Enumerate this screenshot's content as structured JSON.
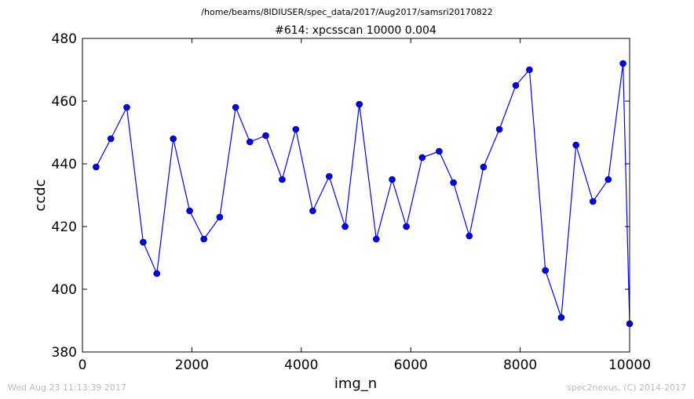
{
  "header": {
    "file_path": "/home/beams/8IDIUSER/spec_data/2017/Aug2017/samsri20170822"
  },
  "footer": {
    "timestamp": "Wed Aug 23 11:13:39 2017",
    "credit": "spec2nexus, (C) 2014-2017"
  },
  "chart_data": {
    "type": "line",
    "title": "#614: xpcsscan 10000 0.004",
    "xlabel": "img_n",
    "ylabel": "ccdc",
    "xlim": [
      0,
      10000
    ],
    "ylim": [
      380,
      480
    ],
    "xticks": [
      0,
      2000,
      4000,
      6000,
      8000,
      10000
    ],
    "yticks": [
      380,
      400,
      420,
      440,
      460,
      480
    ],
    "grid": false,
    "line_color": "#0000ff",
    "marker": "circle",
    "series": [
      {
        "x": [
          250,
          520,
          810,
          1110,
          1360,
          1660,
          1960,
          2220,
          2510,
          2800,
          3060,
          3350,
          3650,
          3900,
          4210,
          4510,
          4800,
          5060,
          5370,
          5660,
          5920,
          6210,
          6520,
          6780,
          7070,
          7330,
          7620,
          7920,
          8170,
          8460,
          8750,
          9020,
          9330,
          9610,
          9880,
          10000
        ],
        "y": [
          439,
          448,
          458,
          415,
          405,
          448,
          425,
          416,
          423,
          458,
          447,
          449,
          435,
          451,
          425,
          436,
          420,
          459,
          416,
          435,
          420,
          442,
          444,
          434,
          417,
          439,
          451,
          465,
          470,
          406,
          391,
          446,
          428,
          435,
          472,
          389
        ]
      }
    ]
  }
}
